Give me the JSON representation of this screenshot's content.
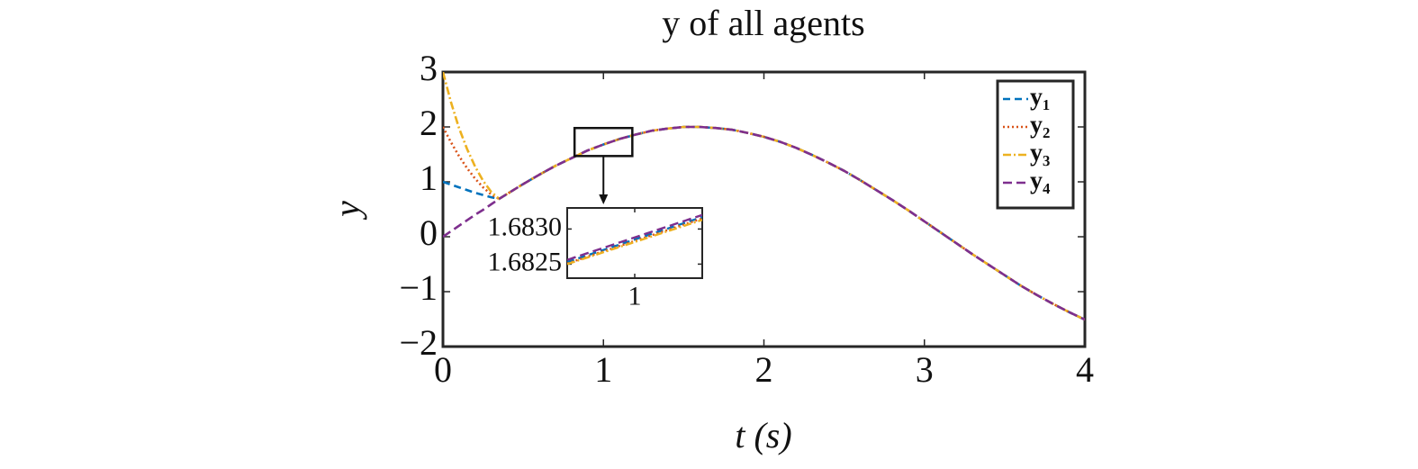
{
  "chart_data": {
    "type": "line",
    "title": "y of all agents",
    "xlabel": "t (s)",
    "ylabel": "y",
    "x": [
      0,
      0.05,
      0.1,
      0.15,
      0.2,
      0.25,
      0.3,
      0.35,
      0.4,
      0.5,
      0.6,
      0.7,
      0.8,
      0.9,
      1.0,
      1.1,
      1.2,
      1.3,
      1.4,
      1.5,
      1.6,
      1.7,
      1.8,
      1.9,
      2.0,
      2.1,
      2.2,
      2.3,
      2.4,
      2.5,
      2.6,
      2.7,
      2.8,
      2.9,
      3.0,
      3.1,
      3.2,
      3.3,
      3.4,
      3.5,
      3.6,
      3.7,
      3.8,
      3.9,
      4.0
    ],
    "series": [
      {
        "name": "y₁",
        "color": "#0072bd",
        "dash": "8 5",
        "values": [
          1,
          0.95,
          0.9,
          0.85,
          0.8,
          0.76,
          0.72,
          0.69,
          0.78,
          0.96,
          1.13,
          1.29,
          1.43,
          1.57,
          1.68,
          1.78,
          1.86,
          1.93,
          1.97,
          2.0,
          2.0,
          1.98,
          1.95,
          1.89,
          1.82,
          1.73,
          1.62,
          1.49,
          1.35,
          1.2,
          1.03,
          0.85,
          0.67,
          0.48,
          0.28,
          0.08,
          -0.12,
          -0.32,
          -0.51,
          -0.7,
          -0.89,
          -1.06,
          -1.22,
          -1.37,
          -1.51
        ]
      },
      {
        "name": "y₂",
        "color": "#d95319",
        "dash": "2 3",
        "values": [
          2,
          1.72,
          1.47,
          1.25,
          1.06,
          0.9,
          0.77,
          0.69,
          0.78,
          0.96,
          1.13,
          1.29,
          1.43,
          1.57,
          1.68,
          1.78,
          1.86,
          1.93,
          1.97,
          2.0,
          2.0,
          1.98,
          1.95,
          1.89,
          1.82,
          1.73,
          1.62,
          1.49,
          1.35,
          1.2,
          1.03,
          0.85,
          0.67,
          0.48,
          0.28,
          0.08,
          -0.12,
          -0.32,
          -0.51,
          -0.7,
          -0.89,
          -1.06,
          -1.22,
          -1.37,
          -1.51
        ]
      },
      {
        "name": "y₃",
        "color": "#edb120",
        "dash": "9 3 2 3",
        "values": [
          3,
          2.45,
          1.98,
          1.6,
          1.28,
          1.02,
          0.82,
          0.69,
          0.78,
          0.96,
          1.13,
          1.29,
          1.43,
          1.57,
          1.68,
          1.78,
          1.86,
          1.93,
          1.97,
          2.0,
          2.0,
          1.98,
          1.95,
          1.89,
          1.82,
          1.73,
          1.62,
          1.49,
          1.35,
          1.2,
          1.03,
          0.85,
          0.67,
          0.48,
          0.28,
          0.08,
          -0.12,
          -0.32,
          -0.51,
          -0.7,
          -0.89,
          -1.06,
          -1.22,
          -1.37,
          -1.51
        ]
      },
      {
        "name": "y₄",
        "color": "#7e2f8e",
        "dash": "10 5",
        "values": [
          0,
          0.1,
          0.2,
          0.3,
          0.4,
          0.49,
          0.59,
          0.69,
          0.78,
          0.96,
          1.13,
          1.29,
          1.43,
          1.57,
          1.68,
          1.78,
          1.86,
          1.93,
          1.97,
          2.0,
          2.0,
          1.98,
          1.95,
          1.89,
          1.82,
          1.73,
          1.62,
          1.49,
          1.35,
          1.2,
          1.03,
          0.85,
          0.67,
          0.48,
          0.28,
          0.08,
          -0.12,
          -0.32,
          -0.51,
          -0.7,
          -0.89,
          -1.06,
          -1.22,
          -1.37,
          -1.51
        ]
      }
    ],
    "xlim": [
      0,
      4
    ],
    "ylim": [
      -2,
      3
    ],
    "xticks": [
      0,
      1,
      2,
      3,
      4
    ],
    "yticks": [
      {
        "value": -2,
        "label": "−2"
      },
      {
        "value": -1,
        "label": "−1"
      },
      0,
      1,
      2,
      3
    ],
    "legend": "upper right",
    "inset": {
      "source_xlim": [
        0.82,
        1.18
      ],
      "source_ylim": [
        1.47,
        1.98
      ],
      "x": [
        0.9997,
        1.0003
      ],
      "series_values": [
        [
          1.68253,
          1.68317
        ],
        [
          1.68251,
          1.68315
        ],
        [
          1.6825,
          1.68313
        ],
        [
          1.68256,
          1.6832
        ]
      ],
      "xlim": [
        0.9997,
        1.0003
      ],
      "ylim": [
        1.6823,
        1.6833
      ],
      "xticks": [
        1
      ],
      "yticks": [
        {
          "value": 1.6825,
          "label": "1.6825"
        },
        {
          "value": 1.683,
          "label": "1.6830"
        }
      ]
    }
  }
}
